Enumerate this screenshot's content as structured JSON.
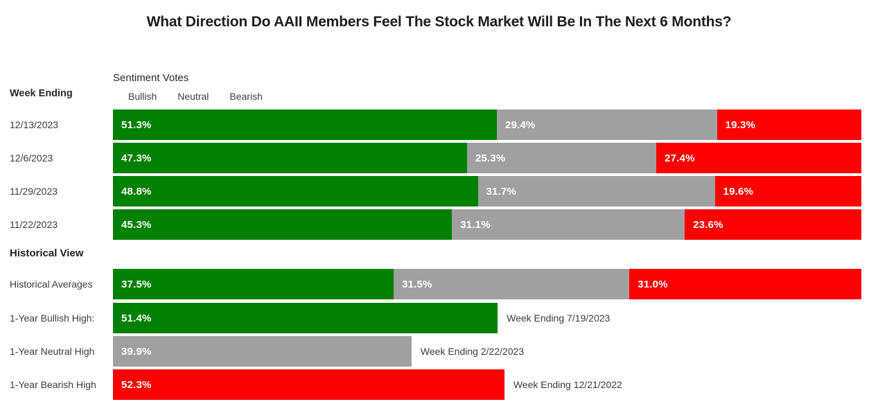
{
  "title": "What Direction Do AAII Members Feel The Stock Market Will Be In The Next 6 Months?",
  "left_column": {
    "header": "Week Ending"
  },
  "legend": {
    "title": "Sentiment Votes",
    "items": [
      {
        "label": "Bullish",
        "color": "#018001"
      },
      {
        "label": "Neutral",
        "color": "#a0a0a0"
      },
      {
        "label": "Bearish",
        "color": "#fe0000"
      }
    ]
  },
  "sections": {
    "historical_header": "Historical View"
  },
  "chart_data": {
    "type": "bar",
    "orientation": "horizontal",
    "stacked": true,
    "unit": "%",
    "axis": {
      "xmin": 0,
      "xmax": 100,
      "grid": false,
      "ticks_visible": false
    },
    "series_names": [
      "Bullish",
      "Neutral",
      "Bearish"
    ],
    "colors": {
      "bullish": "#018001",
      "neutral": "#a0a0a0",
      "bearish": "#fe0000"
    },
    "weekly": [
      {
        "week": "12/13/2023",
        "bullish": 51.3,
        "neutral": 29.4,
        "bearish": 19.3,
        "bullish_label": "51.3%",
        "neutral_label": "29.4%",
        "bearish_label": "19.3%"
      },
      {
        "week": "12/6/2023",
        "bullish": 47.3,
        "neutral": 25.3,
        "bearish": 27.4,
        "bullish_label": "47.3%",
        "neutral_label": "25.3%",
        "bearish_label": "27.4%"
      },
      {
        "week": "11/29/2023",
        "bullish": 48.8,
        "neutral": 31.7,
        "bearish": 19.6,
        "bullish_label": "48.8%",
        "neutral_label": "31.7%",
        "bearish_label": "19.6%"
      },
      {
        "week": "11/22/2023",
        "bullish": 45.3,
        "neutral": 31.1,
        "bearish": 23.6,
        "bullish_label": "45.3%",
        "neutral_label": "31.1%",
        "bearish_label": "23.6%"
      }
    ],
    "historical_averages": {
      "label": "Historical Averages",
      "bullish": 37.5,
      "neutral": 31.5,
      "bearish": 31.0,
      "bullish_label": "37.5%",
      "neutral_label": "31.5%",
      "bearish_label": "31.0%"
    },
    "one_year_highs": [
      {
        "label": "1-Year Bullish High:",
        "series": "Bullish",
        "value": 51.4,
        "value_label": "51.4%",
        "annotation": "Week Ending 7/19/2023"
      },
      {
        "label": "1-Year Neutral High",
        "series": "Neutral",
        "value": 39.9,
        "value_label": "39.9%",
        "annotation": "Week Ending 2/22/2023"
      },
      {
        "label": "1-Year Bearish High",
        "series": "Bearish",
        "value": 52.3,
        "value_label": "52.3%",
        "annotation": "Week Ending 12/21/2022"
      }
    ]
  }
}
